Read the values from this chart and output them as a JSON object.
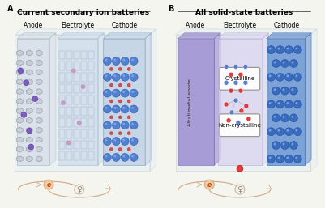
{
  "bg_color": "#f5f5f0",
  "title_A": "Current secondary ion batteries",
  "title_B": "All solid-state batteries",
  "label_A": "A",
  "label_B": "B",
  "anode_label": "Anode",
  "electrolyte_label": "Electrolyte",
  "cathode_label": "Cathode",
  "crystalline_label": "Crystalline",
  "non_crystalline_label": "Non-crystalline",
  "alkali_metal_label": "Alkali metal anode",
  "electron_circle_color": "#f0c8a0",
  "electron_text_color": "#cc4400",
  "arrow_color": "#d0a888"
}
